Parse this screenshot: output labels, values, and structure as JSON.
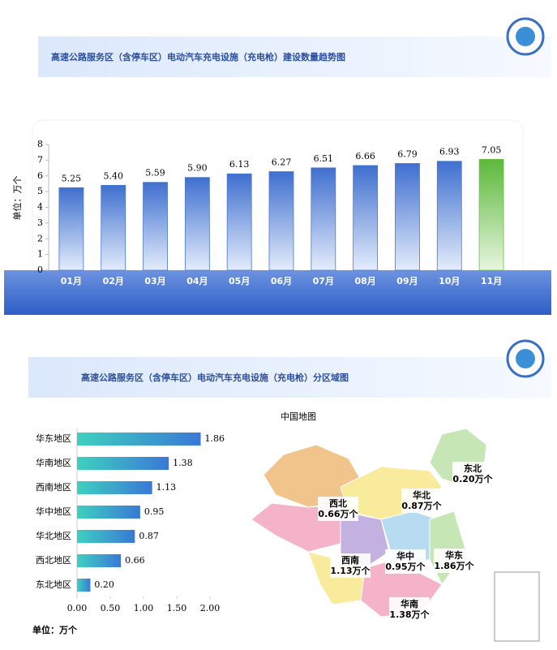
{
  "chart_data": [
    {
      "type": "bar",
      "title": "高速公路服务区（含停车区）电动汽车充电设施（充电枪）建设数量趋势图",
      "y_label": "单位：万个",
      "categories": [
        "01月",
        "02月",
        "03月",
        "04月",
        "05月",
        "06月",
        "07月",
        "08月",
        "09月",
        "10月",
        "11月"
      ],
      "values": [
        5.25,
        5.4,
        5.59,
        5.9,
        6.13,
        6.27,
        6.51,
        6.66,
        6.79,
        6.93,
        7.05
      ],
      "value_labels": [
        "5.25",
        "5.40",
        "5.59",
        "5.90",
        "6.13",
        "6.27",
        "6.51",
        "6.66",
        "6.79",
        "6.93",
        "7.05"
      ],
      "colors": [
        "#4a78d0",
        "#4a78d0",
        "#4a78d0",
        "#4a78d0",
        "#4a78d0",
        "#4a78d0",
        "#4a78d0",
        "#4a78d0",
        "#4a78d0",
        "#4a78d0",
        "#6cc04a"
      ],
      "ylim": [
        0,
        8
      ],
      "yticks": [
        0,
        1,
        2,
        3,
        4,
        5,
        6,
        7,
        8
      ],
      "grid": false
    },
    {
      "type": "hbar",
      "title": "高速公路服务区（含停车区）电动汽车充电设施（充电枪）分区域图",
      "x_label": "单位：万个",
      "categories": [
        "华东地区",
        "华南地区",
        "西南地区",
        "华中地区",
        "华北地区",
        "西北地区",
        "东北地区"
      ],
      "values": [
        1.86,
        1.38,
        1.13,
        0.95,
        0.87,
        0.66,
        0.2
      ],
      "value_labels": [
        "1.86",
        "1.38",
        "1.13",
        "0.95",
        "0.87",
        "0.66",
        "0.20"
      ],
      "color": "#3a8fd6",
      "xlim": [
        0,
        2
      ],
      "xticks": [
        {
          "value": 0,
          "label": "0.00"
        },
        {
          "value": 0.5,
          "label": "0.50"
        },
        {
          "value": 1,
          "label": "1.00"
        },
        {
          "value": 1.5,
          "label": "1.50"
        },
        {
          "value": 2,
          "label": "2.00"
        }
      ],
      "grid": false
    }
  ],
  "map": {
    "title": "中国地图",
    "labels": [
      {
        "region": "东北",
        "text": "0.20万个"
      },
      {
        "region": "华北",
        "text": "0.87万个"
      },
      {
        "region": "西北",
        "text": "0.66万个"
      },
      {
        "region": "西南",
        "text": "1.13万个"
      },
      {
        "region": "华中",
        "text": "0.95万个"
      },
      {
        "region": "华东",
        "text": "1.86万个"
      },
      {
        "region": "华南",
        "text": "1.38万个"
      }
    ]
  }
}
